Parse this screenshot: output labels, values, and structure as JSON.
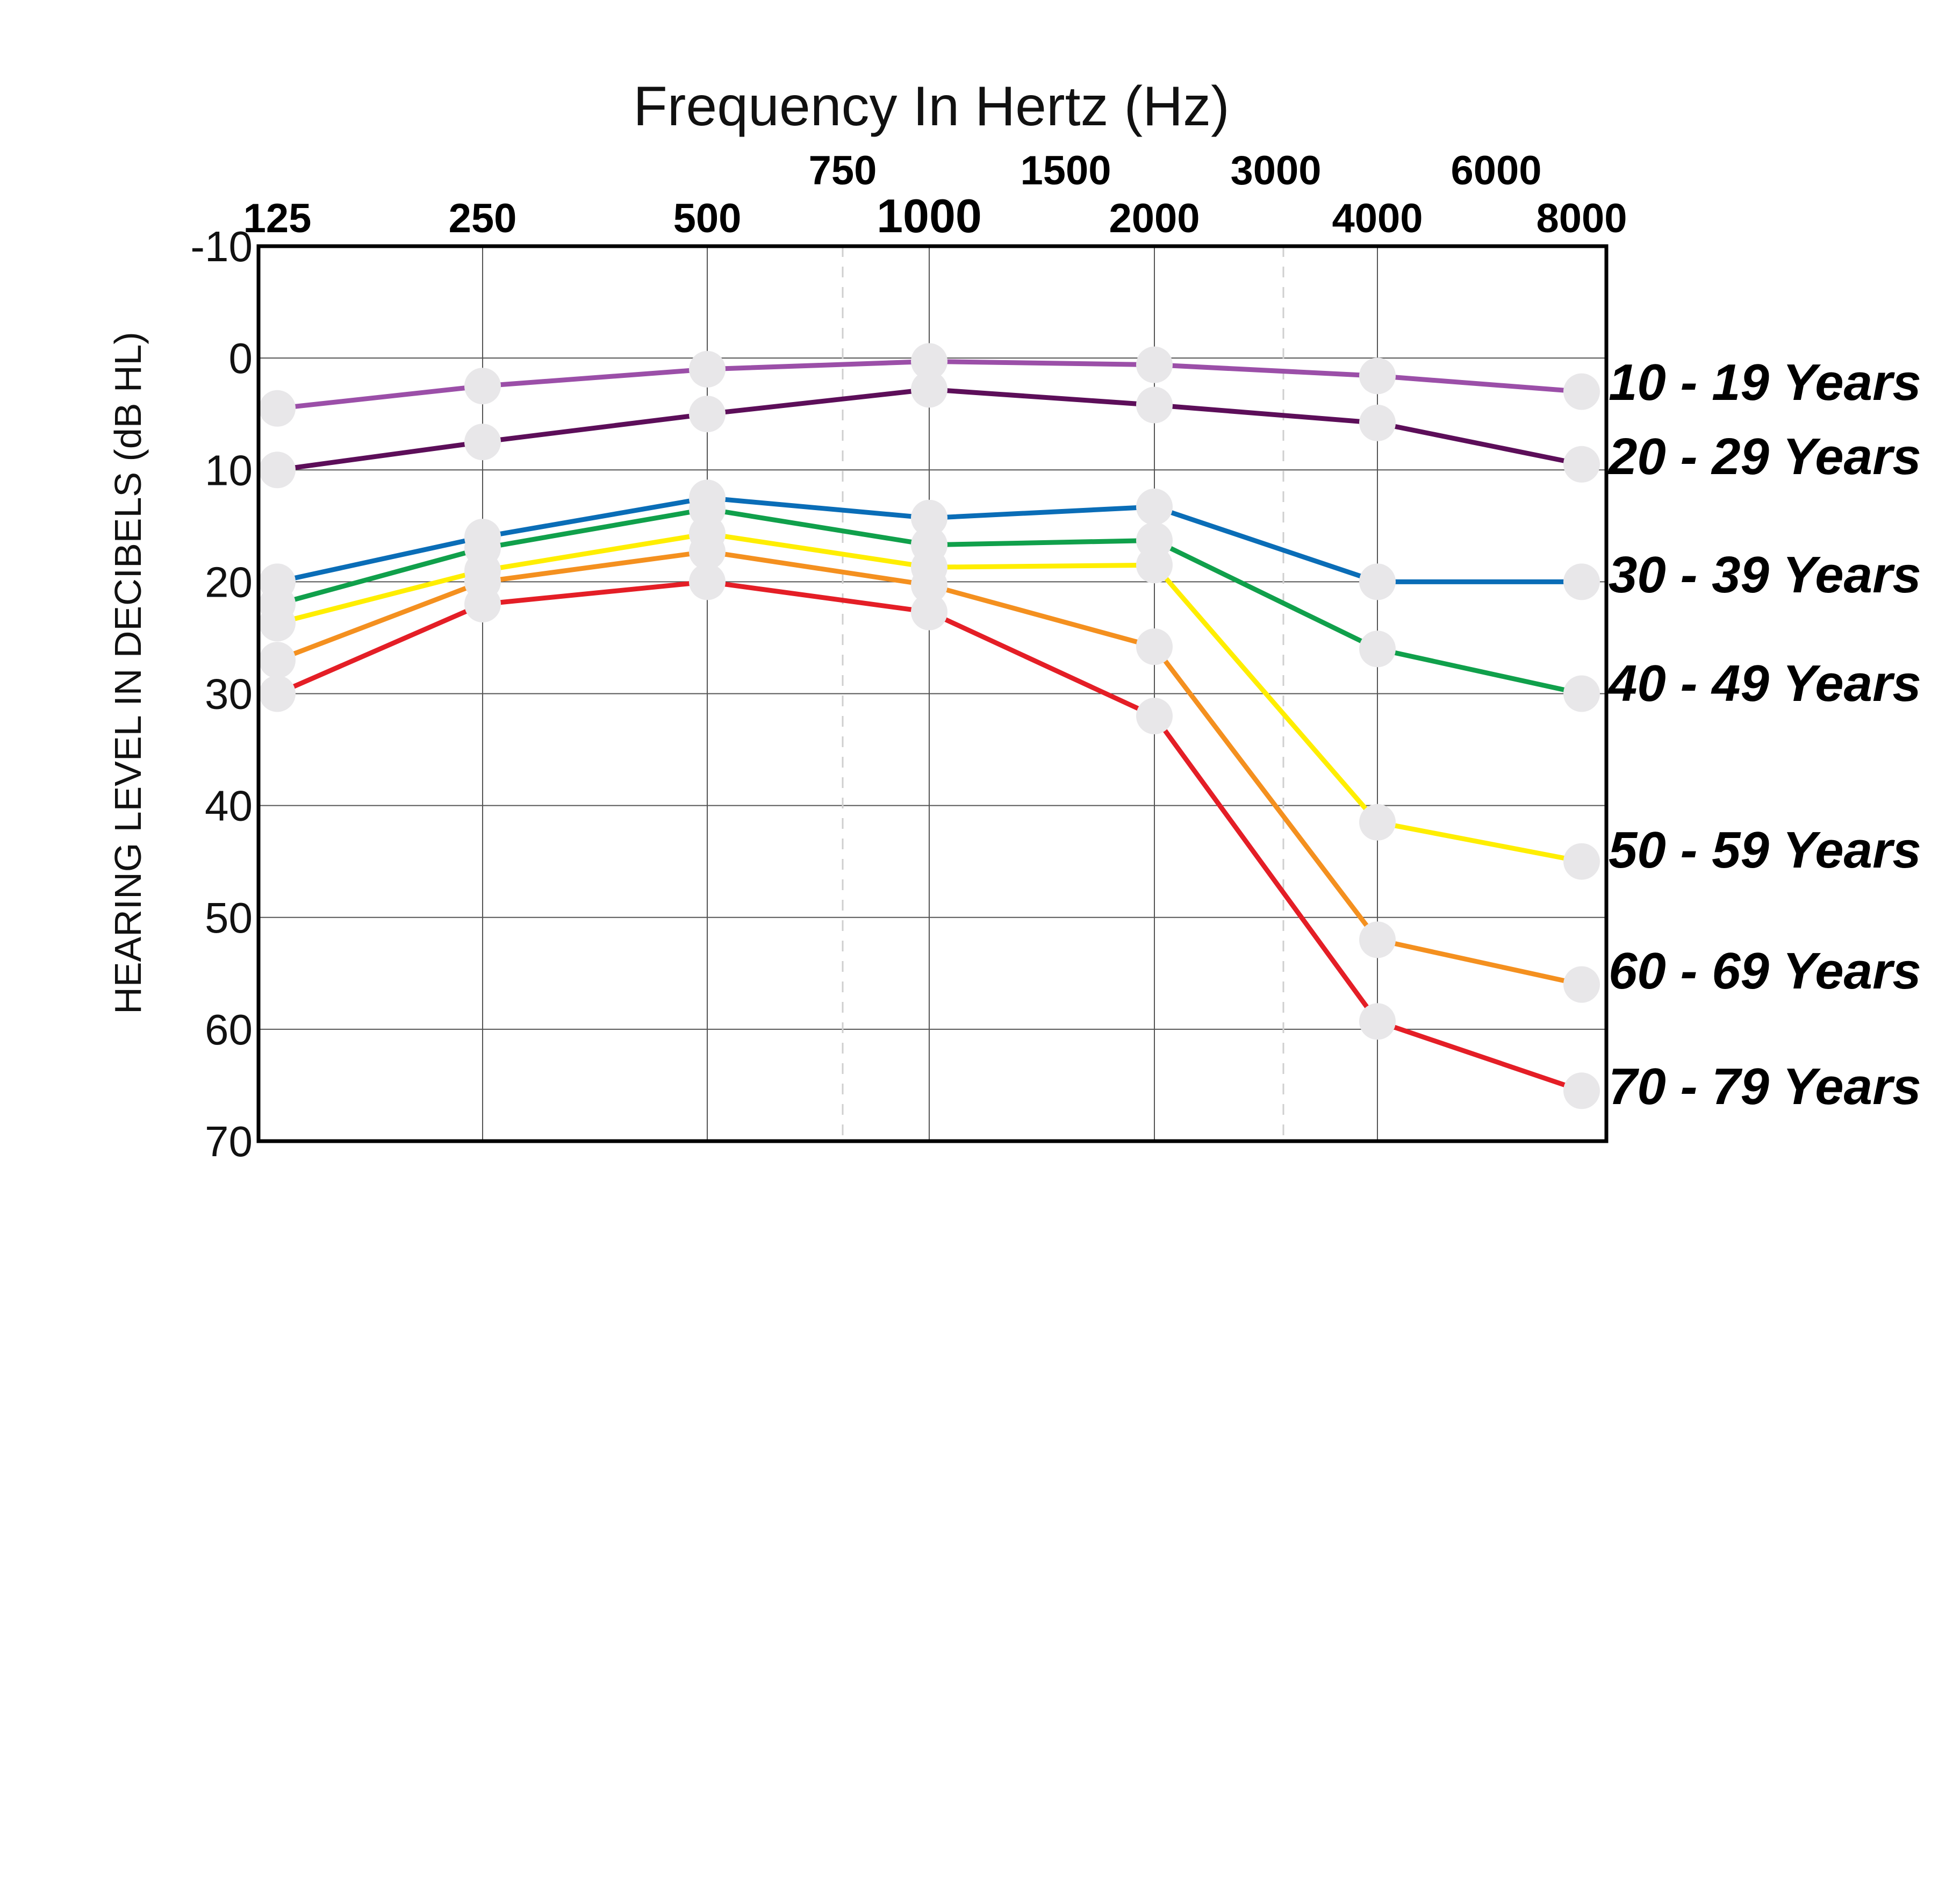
{
  "chart_data": {
    "type": "line",
    "title": "Frequency In Hertz (Hz)",
    "xlabel": "Frequency In Hertz (Hz)",
    "ylabel": "HEARING LEVEL IN DECIBELS (dB HL)",
    "x": [
      "125",
      "250",
      "500",
      "1000",
      "2000",
      "4000",
      "8000"
    ],
    "x_intermediate": [
      "750",
      "1500",
      "3000",
      "6000"
    ],
    "ylim": [
      -10,
      70
    ],
    "y_inverted": true,
    "yticks": [
      "-10",
      "0",
      "10",
      "20",
      "30",
      "40",
      "50",
      "60",
      "70"
    ],
    "grid": true,
    "legend_position": "right",
    "series": [
      {
        "name": "10 - 19 Years",
        "color": "#9b4fa8",
        "values": [
          4.5,
          2.5,
          1,
          0.3,
          0.6,
          1.6,
          3
        ]
      },
      {
        "name": "20 - 29 Years",
        "color": "#5c0e59",
        "values": [
          10,
          7.5,
          5,
          2.8,
          4.2,
          5.8,
          9.5
        ]
      },
      {
        "name": "30 - 39 Years",
        "color": "#0a6db7",
        "values": [
          20,
          16,
          12.5,
          14.3,
          13.3,
          20,
          20
        ]
      },
      {
        "name": "40 - 49 Years",
        "color": "#10a04b",
        "values": [
          22,
          17,
          13.5,
          16.7,
          16.3,
          26,
          30
        ]
      },
      {
        "name": "50 - 59 Years",
        "color": "#ffee00",
        "values": [
          23.7,
          19,
          15.7,
          18.7,
          18.5,
          41.5,
          45
        ]
      },
      {
        "name": "60 - 69 Years",
        "color": "#f4901f",
        "values": [
          27,
          20,
          17.3,
          20.3,
          25.8,
          52,
          56
        ]
      },
      {
        "name": "70 - 79 Years",
        "color": "#e41e26",
        "values": [
          30,
          22,
          20,
          22.7,
          32,
          59.3,
          65.5
        ]
      }
    ]
  }
}
